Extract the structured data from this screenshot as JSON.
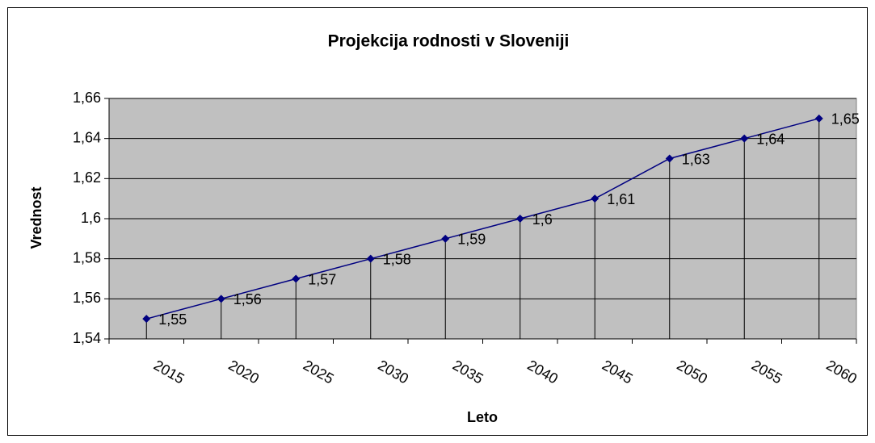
{
  "chart_data": {
    "type": "line",
    "title": "Projekcija rodnosti v Sloveniji",
    "xlabel": "Leto",
    "ylabel": "Vrednost",
    "categories": [
      "2015",
      "2020",
      "2025",
      "2030",
      "2035",
      "2040",
      "2045",
      "2050",
      "2055",
      "2060"
    ],
    "series": [
      {
        "name": "Vrednost",
        "color": "#000080",
        "values": [
          1.55,
          1.56,
          1.57,
          1.58,
          1.59,
          1.6,
          1.61,
          1.63,
          1.64,
          1.65
        ],
        "value_labels": [
          "1,55",
          "1,56",
          "1,57",
          "1,58",
          "1,59",
          "1,6",
          "1,61",
          "1,63",
          "1,64",
          "1,65"
        ]
      }
    ],
    "ylim": [
      1.54,
      1.66
    ],
    "yticks": [
      {
        "value": 1.54,
        "label": "1,54"
      },
      {
        "value": 1.56,
        "label": "1,56"
      },
      {
        "value": 1.58,
        "label": "1,58"
      },
      {
        "value": 1.6,
        "label": "1,6"
      },
      {
        "value": 1.62,
        "label": "1,62"
      },
      {
        "value": 1.64,
        "label": "1,64"
      },
      {
        "value": 1.66,
        "label": "1,66"
      }
    ],
    "grid": true,
    "drop_lines": true,
    "plot_background": "#c0c0c0"
  }
}
